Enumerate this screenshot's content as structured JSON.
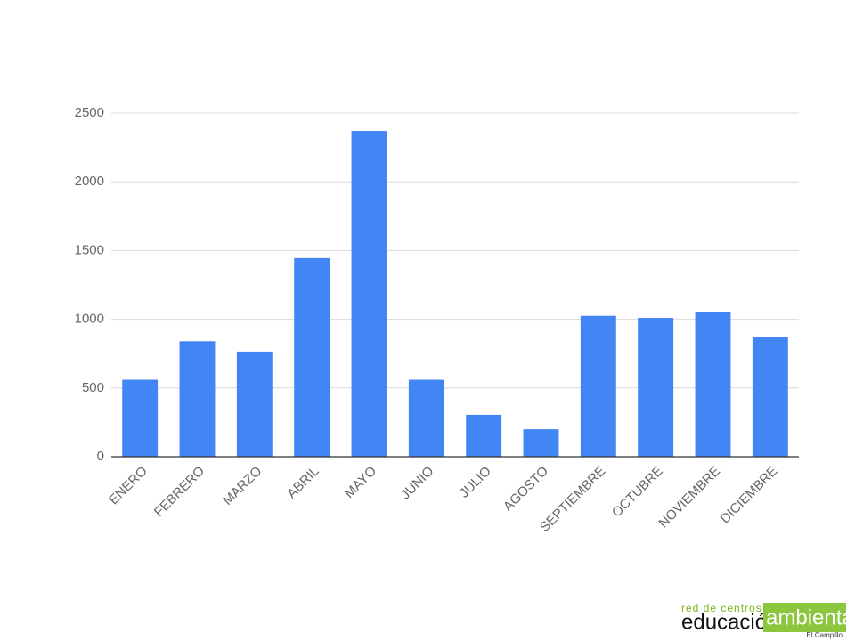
{
  "chart_data": {
    "type": "bar",
    "categories": [
      "ENERO",
      "FEBRERO",
      "MARZO",
      "ABRIL",
      "MAYO",
      "JUNIO",
      "JULIO",
      "AGOSTO",
      "SEPTIEMBRE",
      "OCTUBRE",
      "NOVIEMBRE",
      "DICIEMBRE"
    ],
    "values": [
      560,
      840,
      765,
      1445,
      2370,
      560,
      305,
      200,
      1025,
      1010,
      1055,
      870
    ],
    "color": "#4285f4",
    "ylim": [
      0,
      2500
    ],
    "yticks": [
      0,
      500,
      1000,
      1500,
      2000,
      2500
    ],
    "grid": true
  },
  "logo": {
    "tagline": "red de centros",
    "word1": "educación",
    "word2": "ambiental",
    "place": "El Campillo"
  }
}
